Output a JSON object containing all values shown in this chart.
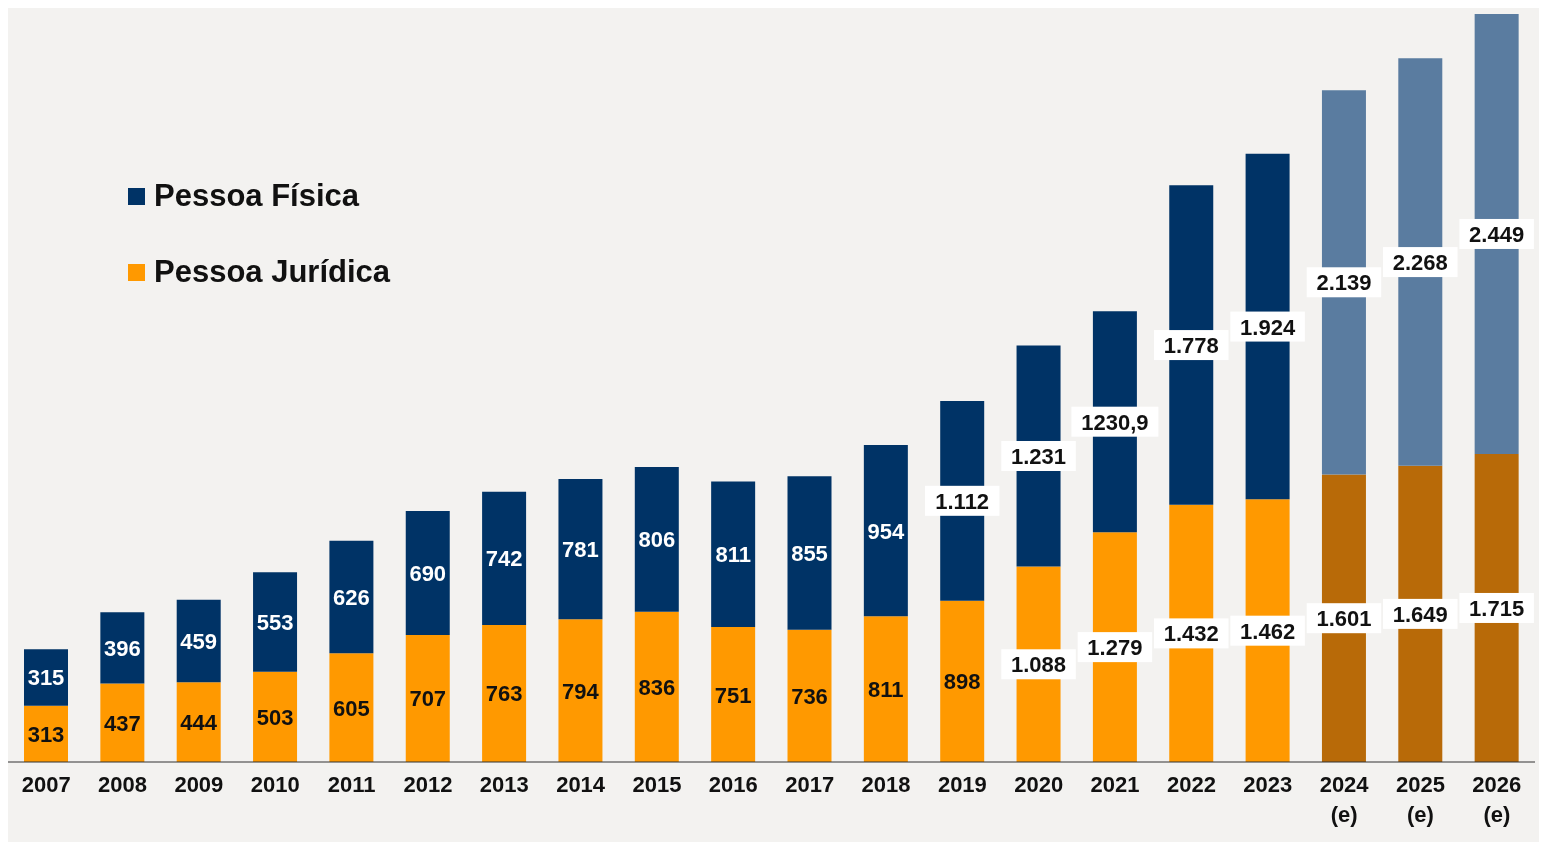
{
  "chart_data": {
    "type": "bar",
    "stacked": true,
    "legend": "top left",
    "data_labels": false,
    "grid": false,
    "categories": [
      "2007",
      "2008",
      "2009",
      "2010",
      "2011",
      "2012",
      "2013",
      "2014",
      "2015",
      "2016",
      "2017",
      "2018",
      "2019",
      "2020",
      "2021",
      "2022",
      "2023",
      "2024\n(e)",
      "2025\n(e)",
      "2026\n(e)"
    ],
    "series": [
      {
        "name": "Pessoa Jurídica",
        "color": "#ff9900",
        "colors": [
          "#ff9900",
          "#ff9900",
          "#ff9900",
          "#ff9900",
          "#ff9900",
          "#ff9900",
          "#ff9900",
          "#ff9900",
          "#ff9900",
          "#ff9900",
          "#ff9900",
          "#ff9900",
          "#ff9900",
          "#ff9900",
          "#ff9900",
          "#ff9900",
          "#ff9900",
          "#b86a08",
          "#b86a08",
          "#b86a08"
        ],
        "values": [
          313,
          437,
          444,
          503,
          605,
          707,
          763,
          794,
          836,
          751,
          736,
          811,
          898,
          1088,
          1279,
          1432,
          1462,
          1601,
          1649,
          1715
        ],
        "value_labels": [
          "313",
          "437",
          "444",
          "503",
          "605",
          "707",
          "763",
          "794",
          "836",
          "751",
          "736",
          "811",
          "898",
          "1.088",
          "1.279",
          "1.432",
          "1.462",
          "1.601",
          "1.649",
          "1.715"
        ]
      },
      {
        "name": "Pessoa Física",
        "color": "#003366",
        "colors": [
          "#003366",
          "#003366",
          "#003366",
          "#003366",
          "#003366",
          "#003366",
          "#003366",
          "#003366",
          "#003366",
          "#003366",
          "#003366",
          "#003366",
          "#003366",
          "#003366",
          "#003366",
          "#003366",
          "#003366",
          "#5a7ca0",
          "#5a7ca0",
          "#5a7ca0"
        ],
        "values": [
          315,
          396,
          459,
          553,
          626,
          690,
          742,
          781,
          806,
          811,
          855,
          954,
          1112,
          1231,
          1230.9,
          1778,
          1924,
          2139,
          2268,
          2449
        ],
        "value_labels": [
          "315",
          "396",
          "459",
          "553",
          "626",
          "690",
          "742",
          "781",
          "806",
          "811",
          "855",
          "954",
          "1.112",
          "1.231",
          "1230,9",
          "1.778",
          "1.924",
          "2.139",
          "2.268",
          "2.449"
        ]
      }
    ]
  }
}
